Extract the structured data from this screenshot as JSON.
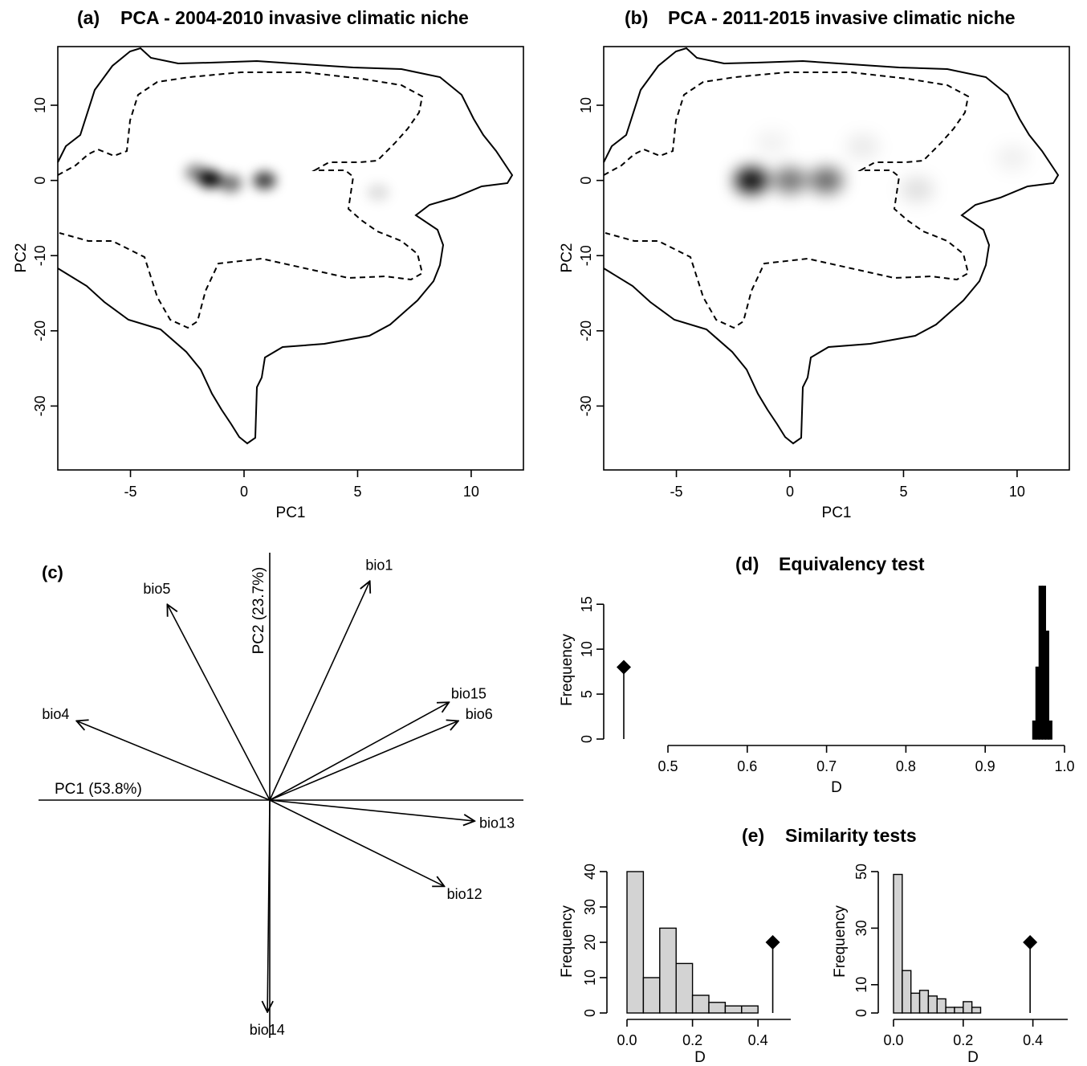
{
  "colors": {
    "ink": "#000000",
    "bar_fill": "#d3d3d3",
    "density": "#000000"
  },
  "chart_data": [
    {
      "id": "a",
      "type": "heatmap",
      "title": "PCA - 2004-2010 invasive climatic niche",
      "panel_label": "(a)",
      "xlabel": "PC1",
      "ylabel": "PC2",
      "xlim": [
        -8.2,
        12.3
      ],
      "ylim": [
        -38.5,
        17.8
      ],
      "xticks": [
        -5,
        0,
        5,
        10
      ],
      "yticks": [
        -30,
        -20,
        -10,
        0,
        10
      ],
      "contours": [
        "solid",
        "dashed"
      ],
      "density_peaks": [
        {
          "x": -1.5,
          "y": 0.2,
          "intensity": 1.0
        },
        {
          "x": -2.1,
          "y": 1.0,
          "intensity": 0.45
        },
        {
          "x": -0.6,
          "y": -0.4,
          "intensity": 0.55
        },
        {
          "x": 0.9,
          "y": 0.0,
          "intensity": 0.75
        },
        {
          "x": 5.9,
          "y": -1.6,
          "intensity": 0.12
        }
      ]
    },
    {
      "id": "b",
      "type": "heatmap",
      "title": "PCA - 2011-2015 invasive climatic niche",
      "panel_label": "(b)",
      "xlabel": "PC1",
      "ylabel": "PC2",
      "xlim": [
        -8.2,
        12.3
      ],
      "ylim": [
        -38.5,
        17.8
      ],
      "xticks": [
        -5,
        0,
        5,
        10
      ],
      "yticks": [
        -30,
        -20,
        -10,
        0,
        10
      ],
      "contours": [
        "solid",
        "dashed"
      ],
      "density_peaks": [
        {
          "x": -1.7,
          "y": 0.0,
          "intensity": 1.0
        },
        {
          "x": 0.0,
          "y": 0.0,
          "intensity": 0.55
        },
        {
          "x": 1.6,
          "y": 0.0,
          "intensity": 0.6
        },
        {
          "x": 3.2,
          "y": 4.5,
          "intensity": 0.08
        },
        {
          "x": 5.6,
          "y": -1.2,
          "intensity": 0.12
        },
        {
          "x": 9.8,
          "y": 3.0,
          "intensity": 0.06
        },
        {
          "x": -0.8,
          "y": 5.0,
          "intensity": 0.05
        }
      ]
    },
    {
      "id": "c",
      "type": "scatter",
      "panel_label": "(c)",
      "axis_labels": {
        "pc1": "PC1 (53.8%)",
        "pc2": "PC2 (23.7%)"
      },
      "loadings": [
        {
          "name": "bio1",
          "x": 0.43,
          "y": 0.94
        },
        {
          "name": "bio5",
          "x": -0.44,
          "y": 0.84
        },
        {
          "name": "bio4",
          "x": -0.83,
          "y": 0.34
        },
        {
          "name": "bio15",
          "x": 0.77,
          "y": 0.42
        },
        {
          "name": "bio6",
          "x": 0.81,
          "y": 0.34
        },
        {
          "name": "bio13",
          "x": 0.88,
          "y": -0.09
        },
        {
          "name": "bio12",
          "x": 0.75,
          "y": -0.37
        },
        {
          "name": "bio14",
          "x": -0.01,
          "y": -0.91
        }
      ]
    },
    {
      "id": "d",
      "type": "bar",
      "title": "Equivalency test",
      "panel_label": "(d)",
      "xlabel": "D",
      "ylabel": "Frequency",
      "xlim": [
        0.5,
        1.0
      ],
      "ylim": [
        0,
        16
      ],
      "xticks": [
        "0.5",
        "0.6",
        "0.7",
        "0.8",
        "0.9",
        "1.0"
      ],
      "yticks": [
        0,
        5,
        10,
        15
      ],
      "bins": [
        {
          "x0": 0.96,
          "x1": 0.964,
          "count": 2
        },
        {
          "x0": 0.964,
          "x1": 0.968,
          "count": 8
        },
        {
          "x0": 0.968,
          "x1": 0.972,
          "count": 17
        },
        {
          "x0": 0.972,
          "x1": 0.976,
          "count": 17
        },
        {
          "x0": 0.976,
          "x1": 0.98,
          "count": 12
        },
        {
          "x0": 0.98,
          "x1": 0.984,
          "count": 2
        }
      ],
      "observed_D": 0.445,
      "observed_height": 8
    },
    {
      "id": "e1",
      "type": "bar",
      "title": "Similarity tests",
      "panel_label": "(e)",
      "xlabel": "D",
      "ylabel": "Frequency",
      "xlim": [
        0.0,
        0.5
      ],
      "ylim": [
        0,
        40
      ],
      "xticks": [
        "0.0",
        "0.2",
        "0.4"
      ],
      "yticks": [
        0,
        10,
        20,
        30,
        40
      ],
      "bins": [
        {
          "x0": 0.0,
          "x1": 0.05,
          "count": 40
        },
        {
          "x0": 0.05,
          "x1": 0.1,
          "count": 10
        },
        {
          "x0": 0.1,
          "x1": 0.15,
          "count": 24
        },
        {
          "x0": 0.15,
          "x1": 0.2,
          "count": 14
        },
        {
          "x0": 0.2,
          "x1": 0.25,
          "count": 5
        },
        {
          "x0": 0.25,
          "x1": 0.3,
          "count": 3
        },
        {
          "x0": 0.3,
          "x1": 0.35,
          "count": 2
        },
        {
          "x0": 0.35,
          "x1": 0.4,
          "count": 2
        }
      ],
      "observed_D": 0.445,
      "observed_height": 20
    },
    {
      "id": "e2",
      "type": "bar",
      "xlabel": "D",
      "ylabel": "Frequency",
      "xlim": [
        0.0,
        0.5
      ],
      "ylim": [
        0,
        50
      ],
      "xticks": [
        "0.0",
        "0.2",
        "0.4"
      ],
      "yticks": [
        0,
        10,
        30,
        50
      ],
      "bins": [
        {
          "x0": 0.0,
          "x1": 0.025,
          "count": 49
        },
        {
          "x0": 0.025,
          "x1": 0.05,
          "count": 15
        },
        {
          "x0": 0.05,
          "x1": 0.075,
          "count": 7
        },
        {
          "x0": 0.075,
          "x1": 0.1,
          "count": 8
        },
        {
          "x0": 0.1,
          "x1": 0.125,
          "count": 6
        },
        {
          "x0": 0.125,
          "x1": 0.15,
          "count": 5
        },
        {
          "x0": 0.15,
          "x1": 0.175,
          "count": 2
        },
        {
          "x0": 0.175,
          "x1": 0.2,
          "count": 2
        },
        {
          "x0": 0.2,
          "x1": 0.225,
          "count": 4
        },
        {
          "x0": 0.225,
          "x1": 0.25,
          "count": 2
        }
      ],
      "observed_D": 0.445,
      "observed_height": 25
    }
  ]
}
